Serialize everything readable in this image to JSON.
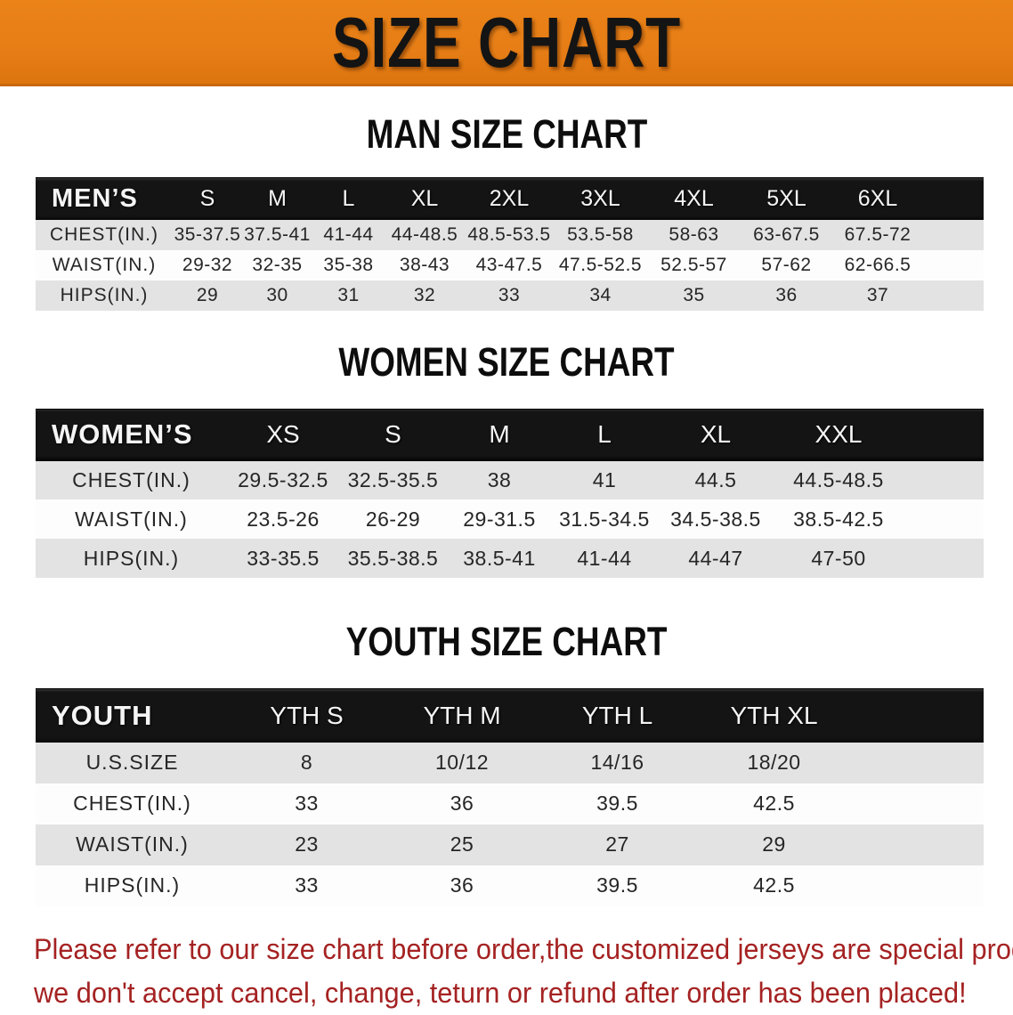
{
  "banner": {
    "title": "SIZE CHART",
    "bg_color": "#e67d16",
    "text_color": "#141414"
  },
  "sections": [
    {
      "title": "MAN SIZE CHART",
      "table": {
        "header_label": "MEN’S",
        "sizes": [
          "S",
          "M",
          "L",
          "XL",
          "2XL",
          "3XL",
          "4XL",
          "5XL",
          "6XL"
        ],
        "rows": [
          {
            "label": "CHEST(IN.)",
            "values": [
              "35-37.5",
              "37.5-41",
              "41-44",
              "44-48.5",
              "48.5-53.5",
              "53.5-58",
              "58-63",
              "63-67.5",
              "67.5-72"
            ]
          },
          {
            "label": "WAIST(IN.)",
            "values": [
              "29-32",
              "32-35",
              "35-38",
              "38-43",
              "43-47.5",
              "47.5-52.5",
              "52.5-57",
              "57-62",
              "62-66.5"
            ]
          },
          {
            "label": "HIPS(IN.)",
            "values": [
              "29",
              "30",
              "31",
              "32",
              "33",
              "34",
              "35",
              "36",
              "37"
            ]
          }
        ]
      }
    },
    {
      "title": "WOMEN SIZE CHART",
      "table": {
        "header_label": "WOMEN’S",
        "sizes": [
          "XS",
          "S",
          "M",
          "L",
          "XL",
          "XXL"
        ],
        "rows": [
          {
            "label": "CHEST(IN.)",
            "values": [
              "29.5-32.5",
              "32.5-35.5",
              "38",
              "41",
              "44.5",
              "44.5-48.5"
            ]
          },
          {
            "label": "WAIST(IN.)",
            "values": [
              "23.5-26",
              "26-29",
              "29-31.5",
              "31.5-34.5",
              "34.5-38.5",
              "38.5-42.5"
            ]
          },
          {
            "label": "HIPS(IN.)",
            "values": [
              "33-35.5",
              "35.5-38.5",
              "38.5-41",
              "41-44",
              "44-47",
              "47-50"
            ]
          }
        ]
      }
    },
    {
      "title": "YOUTH SIZE CHART",
      "table": {
        "header_label": "YOUTH",
        "sizes": [
          "YTH S",
          "YTH M",
          "YTH L",
          "YTH XL"
        ],
        "rows": [
          {
            "label": "U.S.SIZE",
            "values": [
              "8",
              "10/12",
              "14/16",
              "18/20"
            ]
          },
          {
            "label": "CHEST(IN.)",
            "values": [
              "33",
              "36",
              "39.5",
              "42.5"
            ]
          },
          {
            "label": "WAIST(IN.)",
            "values": [
              "23",
              "25",
              "27",
              "29"
            ]
          },
          {
            "label": "HIPS(IN.)",
            "values": [
              "33",
              "36",
              "39.5",
              "42.5"
            ]
          }
        ]
      }
    }
  ],
  "disclaimer": {
    "lines": [
      "Please refer to our size chart before order,the customized jerseys are special products,",
      "we don't accept cancel, change, teturn or refund after order has been placed!"
    ],
    "color": "#a52222"
  },
  "colors": {
    "banner_orange": "#e67d16",
    "header_black": "#141414",
    "row_gray": "#e3e3e4",
    "row_white": "#fdfdfd",
    "disclaimer_red": "#a52222"
  }
}
